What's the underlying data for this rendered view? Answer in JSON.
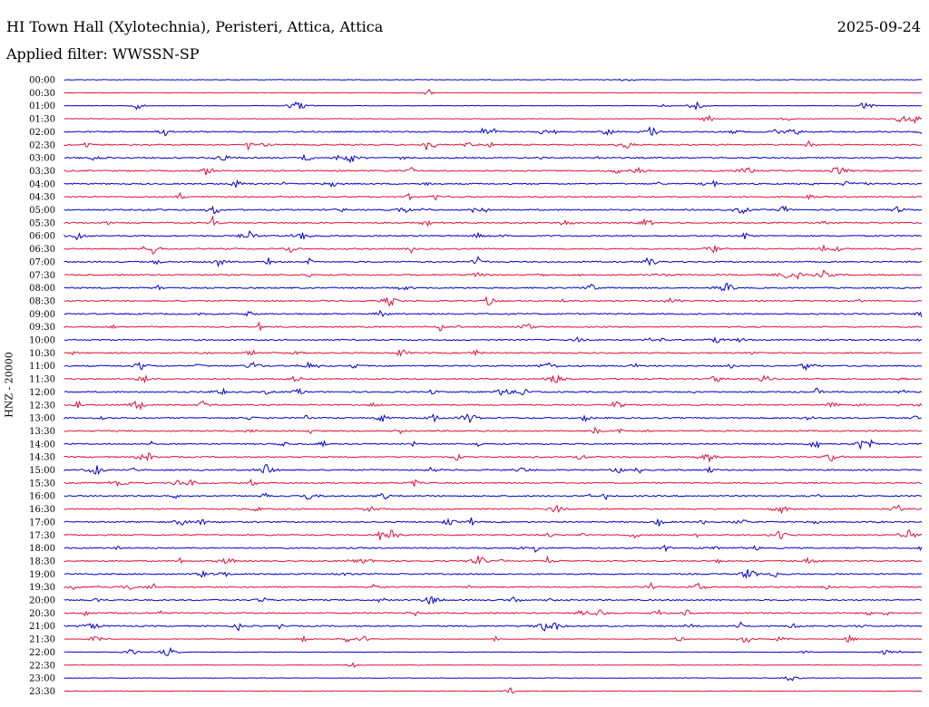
{
  "header": {
    "title": "HI Town Hall (Xylotechnia), Peristeri, Attica, Attica",
    "date": "2025-09-24",
    "filter": "Applied filter: WWSSN-SP"
  },
  "chart_data": {
    "type": "line",
    "title": "HI Town Hall (Xylotechnia), Peristeri, Attica, Attica",
    "ylabel": "HNZ - 20000",
    "grid": false,
    "series_colors": [
      "#0000cc",
      "#e0103c"
    ],
    "rows": [
      {
        "label": "00:00"
      },
      {
        "label": "00:30"
      },
      {
        "label": "01:00"
      },
      {
        "label": "01:30"
      },
      {
        "label": "02:00"
      },
      {
        "label": "02:30"
      },
      {
        "label": "03:00"
      },
      {
        "label": "03:30"
      },
      {
        "label": "04:00"
      },
      {
        "label": "04:30"
      },
      {
        "label": "05:00"
      },
      {
        "label": "05:30"
      },
      {
        "label": "06:00"
      },
      {
        "label": "06:30"
      },
      {
        "label": "07:00"
      },
      {
        "label": "07:30"
      },
      {
        "label": "08:00"
      },
      {
        "label": "08:30"
      },
      {
        "label": "09:00"
      },
      {
        "label": "09:30"
      },
      {
        "label": "10:00"
      },
      {
        "label": "10:30"
      },
      {
        "label": "11:00"
      },
      {
        "label": "11:30"
      },
      {
        "label": "12:00"
      },
      {
        "label": "12:30"
      },
      {
        "label": "13:00"
      },
      {
        "label": "13:30"
      },
      {
        "label": "14:00"
      },
      {
        "label": "14:30"
      },
      {
        "label": "15:00"
      },
      {
        "label": "15:30"
      },
      {
        "label": "16:00"
      },
      {
        "label": "16:30"
      },
      {
        "label": "17:00"
      },
      {
        "label": "17:30"
      },
      {
        "label": "18:00"
      },
      {
        "label": "18:30"
      },
      {
        "label": "19:00"
      },
      {
        "label": "19:30"
      },
      {
        "label": "20:00"
      },
      {
        "label": "20:30"
      },
      {
        "label": "21:00"
      },
      {
        "label": "21:30"
      },
      {
        "label": "22:00"
      },
      {
        "label": "22:30"
      },
      {
        "label": "23:00"
      },
      {
        "label": "23:30"
      }
    ]
  }
}
